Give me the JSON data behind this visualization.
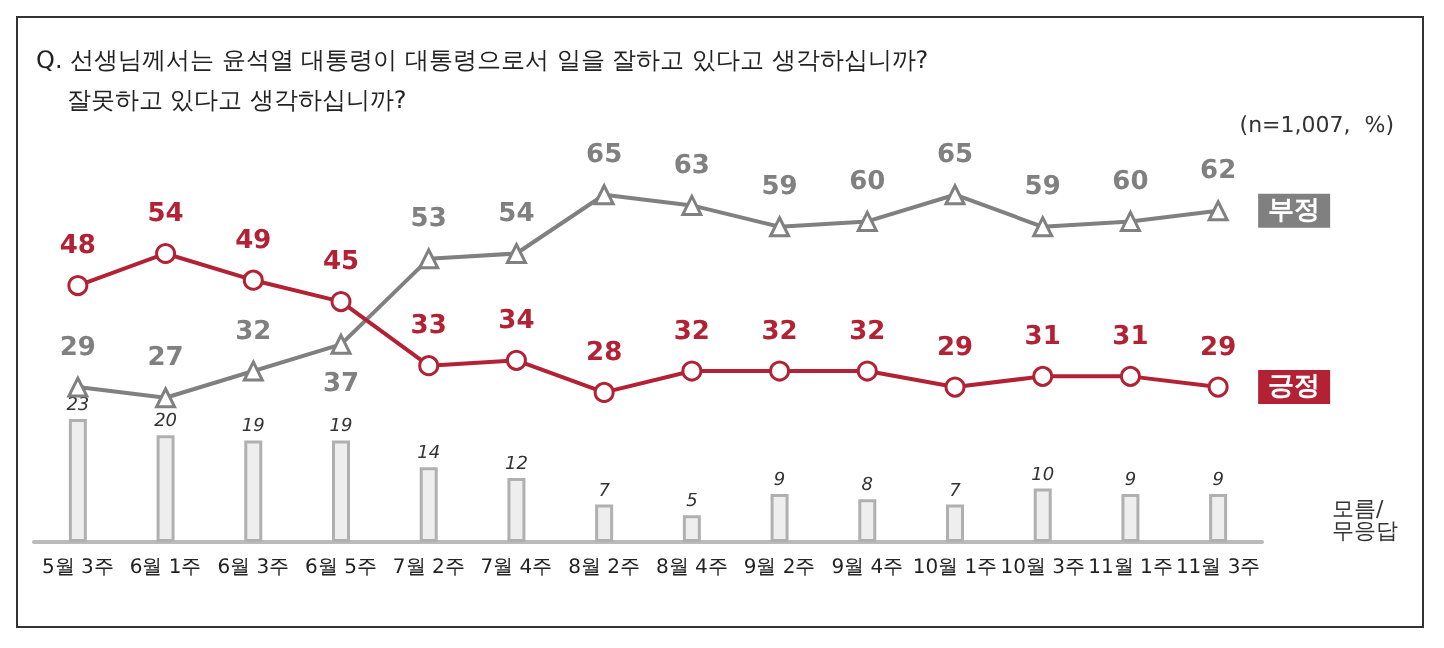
{
  "chart_data": {
    "type": "line",
    "title": "Q. 선생님께서는 윤석열 대통령이 대통령으로서 일을 잘하고 있다고 생각하십니까?\n    잘못하고 있다고 생각하십니까?",
    "annotations": [
      "(n=1,007,  %)"
    ],
    "categories": [
      "5월 3주",
      "6월 1주",
      "6월 3주",
      "6월 5주",
      "7월 2주",
      "7월 4주",
      "8월 2주",
      "8월 4주",
      "9월 2주",
      "9월 4주",
      "10월 1주",
      "10월 3주",
      "11월 1주",
      "11월 3주"
    ],
    "series": [
      {
        "name": "부정",
        "color": "#808080",
        "marker": "triangle",
        "values": [
          29,
          27,
          32,
          37,
          53,
          54,
          65,
          63,
          59,
          60,
          65,
          59,
          60,
          62
        ]
      },
      {
        "name": "긍정",
        "color": "#b22234",
        "marker": "circle",
        "values": [
          48,
          54,
          49,
          45,
          33,
          34,
          28,
          32,
          32,
          32,
          29,
          31,
          31,
          29
        ]
      },
      {
        "name": "모름/\n무응답",
        "type": "bar",
        "color": "#eeeeee",
        "values": [
          23,
          20,
          19,
          19,
          14,
          12,
          7,
          5,
          9,
          8,
          7,
          10,
          9,
          9
        ]
      }
    ],
    "data_labels": true,
    "grid": false,
    "legend": false,
    "line_style": "solid"
  }
}
